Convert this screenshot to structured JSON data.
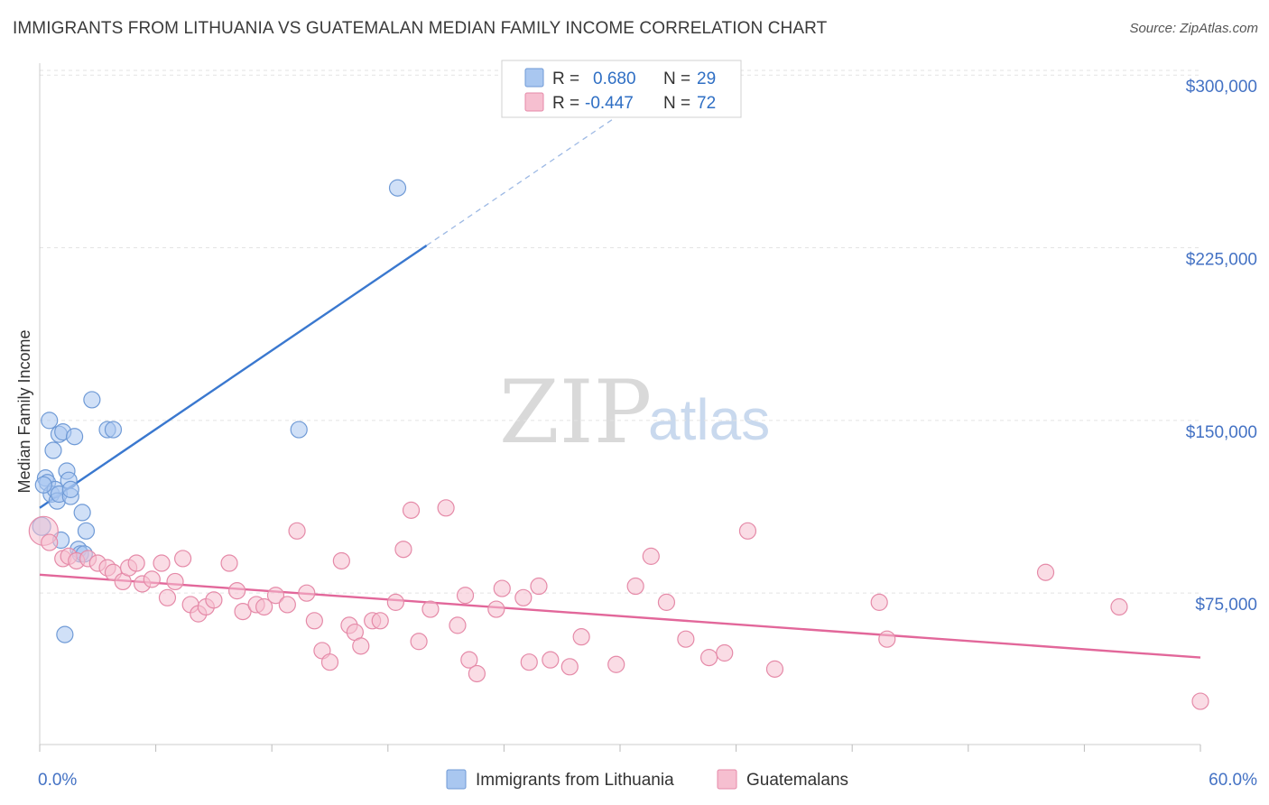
{
  "title": "IMMIGRANTS FROM LITHUANIA VS GUATEMALAN MEDIAN FAMILY INCOME CORRELATION CHART",
  "source": "Source: ZipAtlas.com",
  "watermark": {
    "zip": "ZIP",
    "atlas": "atlas"
  },
  "legend_box": [
    {
      "r_label": "R =",
      "r_value": "0.680",
      "n_label": "N =",
      "n_value": "29",
      "color": "#a9c7f0",
      "stroke": "#6f9ad6"
    },
    {
      "r_label": "R =",
      "r_value": "-0.447",
      "n_label": "N =",
      "n_value": "72",
      "color": "#f6bfd0",
      "stroke": "#e58aa8"
    }
  ],
  "bottom_legend": [
    {
      "label": "Immigrants from Lithuania",
      "color": "#a9c7f0",
      "stroke": "#6f9ad6"
    },
    {
      "label": "Guatemalans",
      "color": "#f6bfd0",
      "stroke": "#e58aa8"
    }
  ],
  "chart_data": {
    "type": "scatter",
    "xlabel": "",
    "ylabel": "Median Family Income",
    "x_tick_labels": [
      "0.0%",
      "60.0%"
    ],
    "y_tick_labels": [
      "$75,000",
      "$150,000",
      "$225,000",
      "$300,000"
    ],
    "y_ticks": [
      75000,
      150000,
      225000,
      300000
    ],
    "xlim": [
      0,
      60
    ],
    "ylim": [
      10000,
      305000
    ],
    "grid": true,
    "series": [
      {
        "name": "Immigrants from Lithuania",
        "color": "#6f9ad6",
        "fill": "#a9c7f0",
        "points": [
          [
            0.1,
            104000
          ],
          [
            0.3,
            125000
          ],
          [
            0.4,
            123000
          ],
          [
            0.5,
            150000
          ],
          [
            0.6,
            118000
          ],
          [
            0.7,
            137000
          ],
          [
            0.8,
            120000
          ],
          [
            0.9,
            115000
          ],
          [
            1.0,
            144000
          ],
          [
            1.0,
            118000
          ],
          [
            1.1,
            98000
          ],
          [
            1.2,
            145000
          ],
          [
            1.4,
            128000
          ],
          [
            1.5,
            124000
          ],
          [
            1.6,
            117000
          ],
          [
            1.6,
            120000
          ],
          [
            1.8,
            143000
          ],
          [
            2.0,
            94000
          ],
          [
            2.1,
            92000
          ],
          [
            2.2,
            110000
          ],
          [
            2.3,
            92000
          ],
          [
            2.4,
            102000
          ],
          [
            2.7,
            159000
          ],
          [
            3.5,
            146000
          ],
          [
            3.8,
            146000
          ],
          [
            13.4,
            146000
          ],
          [
            18.5,
            251000
          ],
          [
            1.3,
            57000
          ],
          [
            0.2,
            122000
          ]
        ],
        "trend": {
          "x": [
            0,
            20
          ],
          "y": [
            112000,
            226000
          ],
          "dashed_to": [
            30,
            283000
          ]
        }
      },
      {
        "name": "Guatemalans",
        "color": "#e58aa8",
        "fill": "#f6bfd0",
        "points": [
          [
            0.2,
            102000
          ],
          [
            0.5,
            97000
          ],
          [
            1.2,
            90000
          ],
          [
            1.5,
            91000
          ],
          [
            1.9,
            89000
          ],
          [
            2.5,
            90000
          ],
          [
            3.0,
            88000
          ],
          [
            3.5,
            86000
          ],
          [
            3.8,
            84000
          ],
          [
            4.3,
            80000
          ],
          [
            4.6,
            86000
          ],
          [
            5.0,
            88000
          ],
          [
            5.3,
            79000
          ],
          [
            5.8,
            81000
          ],
          [
            6.3,
            88000
          ],
          [
            6.6,
            73000
          ],
          [
            7.0,
            80000
          ],
          [
            7.4,
            90000
          ],
          [
            7.8,
            70000
          ],
          [
            8.2,
            66000
          ],
          [
            8.6,
            69000
          ],
          [
            9.0,
            72000
          ],
          [
            9.8,
            88000
          ],
          [
            10.2,
            76000
          ],
          [
            10.5,
            67000
          ],
          [
            11.2,
            70000
          ],
          [
            11.6,
            69000
          ],
          [
            12.2,
            74000
          ],
          [
            12.8,
            70000
          ],
          [
            13.3,
            102000
          ],
          [
            13.8,
            75000
          ],
          [
            14.2,
            63000
          ],
          [
            14.6,
            50000
          ],
          [
            15.0,
            45000
          ],
          [
            15.6,
            89000
          ],
          [
            16.0,
            61000
          ],
          [
            16.3,
            58000
          ],
          [
            16.6,
            52000
          ],
          [
            17.2,
            63000
          ],
          [
            17.6,
            63000
          ],
          [
            18.4,
            71000
          ],
          [
            18.8,
            94000
          ],
          [
            19.2,
            111000
          ],
          [
            19.6,
            54000
          ],
          [
            20.2,
            68000
          ],
          [
            21.0,
            112000
          ],
          [
            21.6,
            61000
          ],
          [
            22.0,
            74000
          ],
          [
            22.2,
            46000
          ],
          [
            22.6,
            40000
          ],
          [
            23.6,
            68000
          ],
          [
            23.9,
            77000
          ],
          [
            25.0,
            73000
          ],
          [
            25.3,
            45000
          ],
          [
            25.8,
            78000
          ],
          [
            26.4,
            46000
          ],
          [
            27.4,
            43000
          ],
          [
            28.0,
            56000
          ],
          [
            29.8,
            44000
          ],
          [
            30.8,
            78000
          ],
          [
            31.6,
            91000
          ],
          [
            32.4,
            71000
          ],
          [
            33.4,
            55000
          ],
          [
            34.6,
            47000
          ],
          [
            35.4,
            49000
          ],
          [
            36.6,
            102000
          ],
          [
            38.0,
            42000
          ],
          [
            43.4,
            71000
          ],
          [
            43.8,
            55000
          ],
          [
            52.0,
            84000
          ],
          [
            55.8,
            69000
          ],
          [
            60.0,
            28000
          ]
        ],
        "trend": {
          "x": [
            0,
            60
          ],
          "y": [
            83000,
            47000
          ]
        }
      }
    ]
  }
}
